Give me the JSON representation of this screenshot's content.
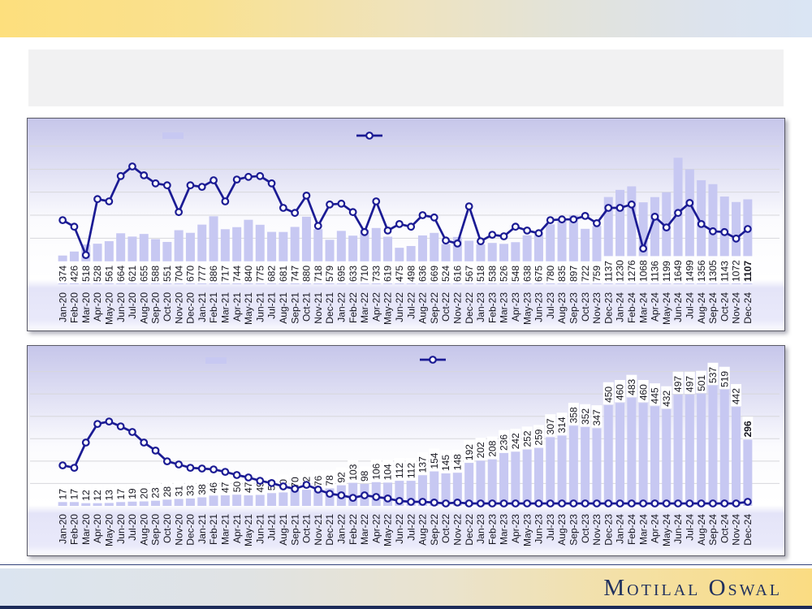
{
  "page": {
    "slide_title": "",
    "brand_text": "Motilal Oswal"
  },
  "colors": {
    "bar_fill": "#c7c8f2",
    "line_stroke": "#1b1b94",
    "marker_fill": "#ffffff",
    "grid": "#d7d7db",
    "label_text": "#15151f",
    "top_band_left": "#fddf7d",
    "top_band_right": "#dae5f4",
    "footer_strip": "#1c2b59",
    "brand_navy": "#20305e"
  },
  "chart_data": [
    {
      "type": "bar+line",
      "title": "",
      "legend": [
        {
          "swatch": "bar",
          "label": ""
        },
        {
          "swatch": "line-marker",
          "label": ""
        }
      ],
      "legend_position": "top",
      "grid": "horizontal",
      "ylim": [
        0,
        1860
      ],
      "grid_values": [
        600,
        900,
        1200,
        1500,
        1800
      ],
      "categories": [
        "Jan-20",
        "Feb-20",
        "Mar-20",
        "Apr-20",
        "May-20",
        "Jun-20",
        "Jul-20",
        "Aug-20",
        "Sep-20",
        "Oct-20",
        "Nov-20",
        "Dec-20",
        "Jan-21",
        "Feb-21",
        "Mar-21",
        "Apr-21",
        "May-21",
        "Jun-21",
        "Jul-21",
        "Aug-21",
        "Sep-21",
        "Oct-21",
        "Nov-21",
        "Dec-21",
        "Jan-22",
        "Feb-22",
        "Mar-22",
        "Apr-22",
        "May-22",
        "Jun-22",
        "Jul-22",
        "Aug-22",
        "Sep-22",
        "Oct-22",
        "Nov-22",
        "Dec-22",
        "Jan-23",
        "Feb-23",
        "Mar-23",
        "Apr-23",
        "May-23",
        "Jun-23",
        "Jul-23",
        "Aug-23",
        "Sep-23",
        "Oct-23",
        "Nov-23",
        "Dec-23",
        "Jan-24",
        "Feb-24",
        "Mar-24",
        "Apr-24",
        "May-24",
        "Jun-24",
        "Jul-24",
        "Aug-24",
        "Sep-24",
        "Oct-24",
        "Nov-24",
        "Dec-24"
      ],
      "series": [
        {
          "name": "",
          "type": "bar",
          "data_labels": true,
          "last_label_bold": true,
          "values": [
            374,
            426,
            518,
            528,
            561,
            664,
            621,
            655,
            588,
            551,
            704,
            670,
            777,
            886,
            717,
            744,
            840,
            775,
            682,
            681,
            747,
            880,
            718,
            579,
            695,
            633,
            710,
            733,
            619,
            475,
            498,
            636,
            669,
            524,
            616,
            567,
            518,
            538,
            526,
            548,
            638,
            675,
            780,
            835,
            897,
            722,
            759,
            1137,
            1230,
            1276,
            1068,
            1136,
            1199,
            1649,
            1499,
            1356,
            1305,
            1143,
            1072,
            1107
          ]
        },
        {
          "name": "",
          "type": "line",
          "data_labels": false,
          "note": "no data labels visible; values estimated from pixel positions on primary axis scale",
          "values": [
            835,
            750,
            380,
            1110,
            1080,
            1410,
            1535,
            1420,
            1315,
            1290,
            940,
            1290,
            1270,
            1355,
            1080,
            1365,
            1400,
            1410,
            1315,
            995,
            930,
            1155,
            760,
            1040,
            1050,
            940,
            680,
            1080,
            700,
            785,
            750,
            900,
            870,
            570,
            530,
            1015,
            560,
            645,
            625,
            750,
            700,
            665,
            835,
            845,
            845,
            890,
            795,
            995,
            995,
            1040,
            465,
            880,
            740,
            930,
            1060,
            785,
            690,
            680,
            595,
            720
          ]
        }
      ]
    },
    {
      "type": "bar+line",
      "title": "",
      "legend": [
        {
          "swatch": "bar",
          "label": ""
        },
        {
          "swatch": "line-marker",
          "label": ""
        }
      ],
      "legend_position": "top",
      "grid": "horizontal",
      "ylim": [
        0,
        640
      ],
      "grid_values": [
        100,
        200,
        300,
        400,
        500,
        600
      ],
      "categories": [
        "Jan-20",
        "Feb-20",
        "Mar-20",
        "Apr-20",
        "May-20",
        "Jun-20",
        "Jul-20",
        "Aug-20",
        "Sep-20",
        "Oct-20",
        "Nov-20",
        "Dec-20",
        "Jan-21",
        "Feb-21",
        "Mar-21",
        "Apr-21",
        "May-21",
        "Jun-21",
        "Jul-21",
        "Aug-21",
        "Sep-21",
        "Oct-21",
        "Nov-21",
        "Dec-21",
        "Jan-22",
        "Feb-22",
        "Mar-22",
        "Apr-22",
        "May-22",
        "Jun-22",
        "Jul-22",
        "Aug-22",
        "Sep-22",
        "Oct-22",
        "Nov-22",
        "Dec-22",
        "Jan-23",
        "Feb-23",
        "Mar-23",
        "Apr-23",
        "May-23",
        "Jun-23",
        "Jul-23",
        "Aug-23",
        "Sep-23",
        "Oct-23",
        "Nov-23",
        "Dec-23",
        "Jan-24",
        "Feb-24",
        "Mar-24",
        "Apr-24",
        "May-24",
        "Jun-24",
        "Jul-24",
        "Aug-24",
        "Sep-24",
        "Oct-24",
        "Nov-24",
        "Dec-24"
      ],
      "series": [
        {
          "name": "",
          "type": "bar",
          "data_labels": true,
          "last_label_bold": true,
          "values": [
            17,
            17,
            12,
            12,
            13,
            17,
            19,
            20,
            23,
            28,
            31,
            33,
            38,
            46,
            47,
            50,
            47,
            49,
            57,
            60,
            70,
            72,
            76,
            78,
            92,
            103,
            98,
            106,
            104,
            112,
            112,
            137,
            154,
            145,
            148,
            192,
            202,
            208,
            236,
            242,
            252,
            259,
            307,
            314,
            358,
            352,
            347,
            450,
            460,
            483,
            460,
            445,
            432,
            497,
            497,
            501,
            537,
            519,
            442,
            296
          ]
        },
        {
          "name": "",
          "type": "line",
          "data_labels": false,
          "note": "no data labels visible; values estimated from pixel positions on primary axis scale",
          "values": [
            181,
            170,
            283,
            366,
            377,
            355,
            330,
            283,
            247,
            199,
            185,
            170,
            167,
            163,
            152,
            138,
            127,
            112,
            102,
            87,
            76,
            94,
            73,
            54,
            47,
            36,
            47,
            40,
            33,
            22,
            18,
            18,
            15,
            11,
            15,
            11,
            11,
            11,
            11,
            11,
            11,
            11,
            11,
            11,
            11,
            11,
            11,
            11,
            11,
            11,
            11,
            11,
            11,
            11,
            11,
            11,
            11,
            11,
            11,
            18
          ]
        }
      ]
    }
  ],
  "footer": {
    "brand_text": "Motilal Oswal"
  }
}
